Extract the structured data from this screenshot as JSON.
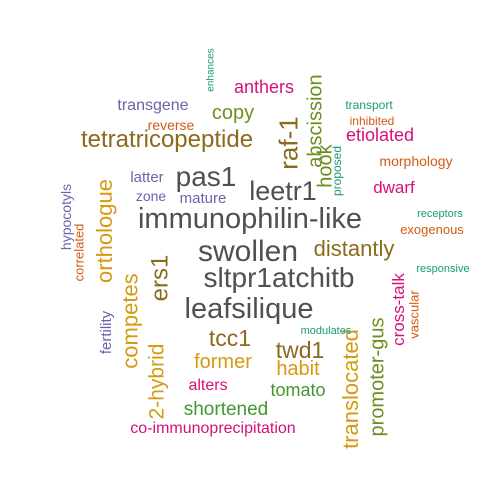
{
  "colors": {
    "gray": "#505050",
    "brown": "#8c6a1c",
    "olive": "#6b8f1e",
    "green": "#3f9a2e",
    "teal": "#1a9a76",
    "orange": "#d05c10",
    "magenta": "#d6107a",
    "purple": "#6a64ac",
    "gold": "#d59a10"
  },
  "words": [
    {
      "text": "swollen",
      "color": "gray",
      "rotated": false
    },
    {
      "text": "immunophilin-like",
      "color": "gray",
      "rotated": false
    },
    {
      "text": "sltpr1atchitb",
      "color": "gray",
      "rotated": false
    },
    {
      "text": "leafsilique",
      "color": "gray",
      "rotated": false
    },
    {
      "text": "pas1",
      "color": "gray",
      "rotated": false
    },
    {
      "text": "leetr1",
      "color": "gray",
      "rotated": false
    },
    {
      "text": "tetratricopeptide",
      "color": "brown",
      "rotated": false
    },
    {
      "text": "distantly",
      "color": "brown",
      "rotated": false
    },
    {
      "text": "ers1",
      "color": "brown",
      "rotated": true
    },
    {
      "text": "raf-1",
      "color": "brown",
      "rotated": true
    },
    {
      "text": "tcc1",
      "color": "brown",
      "rotated": false
    },
    {
      "text": "twd1",
      "color": "brown",
      "rotated": false
    },
    {
      "text": "translocated",
      "color": "gold",
      "rotated": true
    },
    {
      "text": "orthologue",
      "color": "gold",
      "rotated": true
    },
    {
      "text": "competes",
      "color": "gold",
      "rotated": true
    },
    {
      "text": "2-hybrid",
      "color": "gold",
      "rotated": true
    },
    {
      "text": "former",
      "color": "gold",
      "rotated": false
    },
    {
      "text": "habit",
      "color": "gold",
      "rotated": false
    },
    {
      "text": "copy",
      "color": "olive",
      "rotated": false
    },
    {
      "text": "hook",
      "color": "olive",
      "rotated": true
    },
    {
      "text": "abscission",
      "color": "olive",
      "rotated": true
    },
    {
      "text": "promoter-gus",
      "color": "olive",
      "rotated": true
    },
    {
      "text": "tomato",
      "color": "green",
      "rotated": false
    },
    {
      "text": "shortened",
      "color": "green",
      "rotated": false
    },
    {
      "text": "anthers",
      "color": "magenta",
      "rotated": false
    },
    {
      "text": "etiolated",
      "color": "magenta",
      "rotated": false
    },
    {
      "text": "dwarf",
      "color": "magenta",
      "rotated": false
    },
    {
      "text": "cross-talk",
      "color": "magenta",
      "rotated": true
    },
    {
      "text": "alters",
      "color": "magenta",
      "rotated": false
    },
    {
      "text": "co-immunoprecipitation",
      "color": "magenta",
      "rotated": false
    },
    {
      "text": "transgene",
      "color": "purple",
      "rotated": false
    },
    {
      "text": "latter",
      "color": "purple",
      "rotated": false
    },
    {
      "text": "zone",
      "color": "purple",
      "rotated": false
    },
    {
      "text": "mature",
      "color": "purple",
      "rotated": false
    },
    {
      "text": "hypocotyls",
      "color": "purple",
      "rotated": true
    },
    {
      "text": "fertility",
      "color": "purple",
      "rotated": true
    },
    {
      "text": "reverse",
      "color": "orange",
      "rotated": false
    },
    {
      "text": "inhibited",
      "color": "orange",
      "rotated": false
    },
    {
      "text": "morphology",
      "color": "orange",
      "rotated": false
    },
    {
      "text": "exogenous",
      "color": "orange",
      "rotated": false
    },
    {
      "text": "correlated",
      "color": "orange",
      "rotated": true
    },
    {
      "text": "vascular",
      "color": "orange",
      "rotated": true
    },
    {
      "text": "enhances",
      "color": "teal",
      "rotated": true
    },
    {
      "text": "transport",
      "color": "teal",
      "rotated": false
    },
    {
      "text": "proposed",
      "color": "teal",
      "rotated": true
    },
    {
      "text": "receptors",
      "color": "teal",
      "rotated": false
    },
    {
      "text": "responsive",
      "color": "teal",
      "rotated": false
    },
    {
      "text": "modulates",
      "color": "teal",
      "rotated": false
    }
  ]
}
